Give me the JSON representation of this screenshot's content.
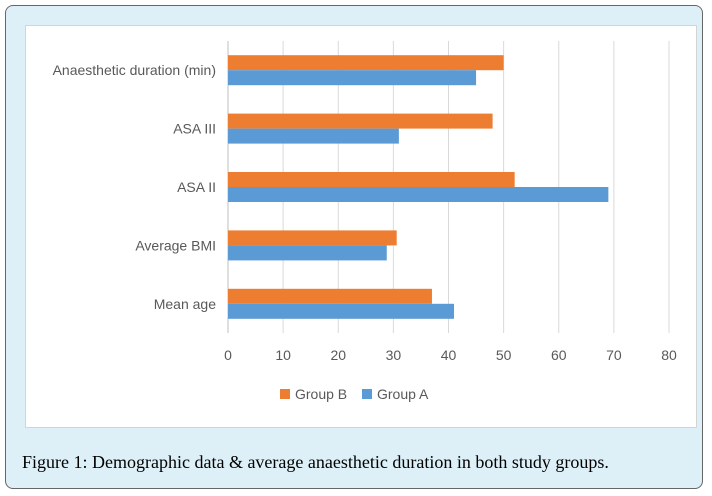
{
  "caption": "Figure 1: Demographic data & average anaesthetic duration in both study groups.",
  "chart_data": {
    "type": "bar",
    "orientation": "horizontal",
    "categories": [
      "Mean age",
      "Average BMI",
      "ASA II",
      "ASA III",
      "Anaesthetic duration (min)"
    ],
    "series": [
      {
        "name": "Group A",
        "color": "#5b9bd5",
        "values": [
          41,
          28.8,
          69,
          31,
          45
        ]
      },
      {
        "name": "Group B",
        "color": "#ed7d31",
        "values": [
          37,
          30.6,
          52,
          48,
          50
        ]
      }
    ],
    "xlim": [
      0,
      80
    ],
    "xticks": [
      0,
      10,
      20,
      30,
      40,
      50,
      60,
      70,
      80
    ],
    "grid": true,
    "legend_position": "bottom"
  }
}
